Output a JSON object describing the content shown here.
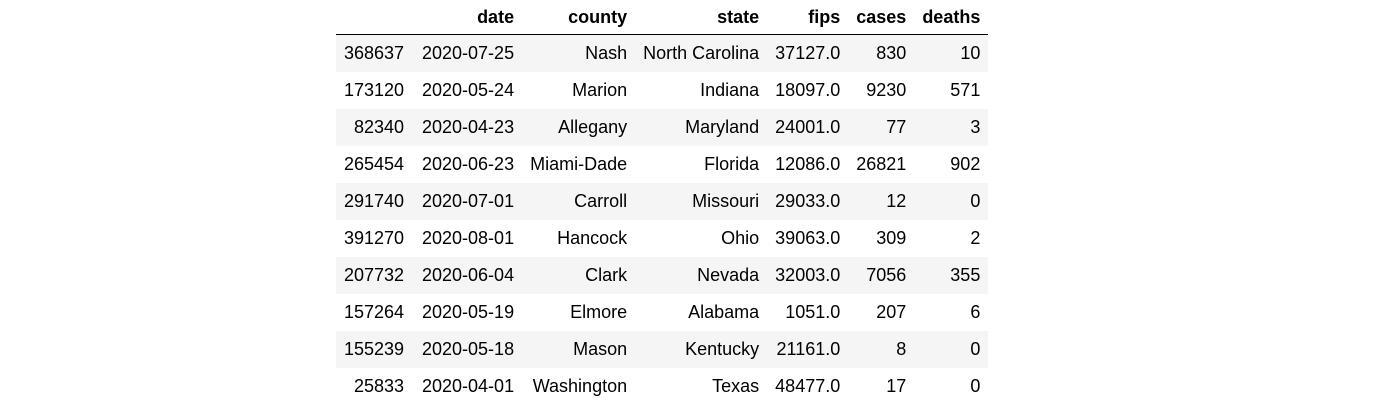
{
  "table": {
    "headers": [
      "",
      "date",
      "county",
      "state",
      "fips",
      "cases",
      "deaths"
    ],
    "rows": [
      [
        "368637",
        "2020-07-25",
        "Nash",
        "North Carolina",
        "37127.0",
        "830",
        "10"
      ],
      [
        "173120",
        "2020-05-24",
        "Marion",
        "Indiana",
        "18097.0",
        "9230",
        "571"
      ],
      [
        "82340",
        "2020-04-23",
        "Allegany",
        "Maryland",
        "24001.0",
        "77",
        "3"
      ],
      [
        "265454",
        "2020-06-23",
        "Miami-Dade",
        "Florida",
        "12086.0",
        "26821",
        "902"
      ],
      [
        "291740",
        "2020-07-01",
        "Carroll",
        "Missouri",
        "29033.0",
        "12",
        "0"
      ],
      [
        "391270",
        "2020-08-01",
        "Hancock",
        "Ohio",
        "39063.0",
        "309",
        "2"
      ],
      [
        "207732",
        "2020-06-04",
        "Clark",
        "Nevada",
        "32003.0",
        "7056",
        "355"
      ],
      [
        "157264",
        "2020-05-19",
        "Elmore",
        "Alabama",
        "1051.0",
        "207",
        "6"
      ],
      [
        "155239",
        "2020-05-18",
        "Mason",
        "Kentucky",
        "21161.0",
        "8",
        "0"
      ],
      [
        "25833",
        "2020-04-01",
        "Washington",
        "Texas",
        "48477.0",
        "17",
        "0"
      ]
    ]
  }
}
